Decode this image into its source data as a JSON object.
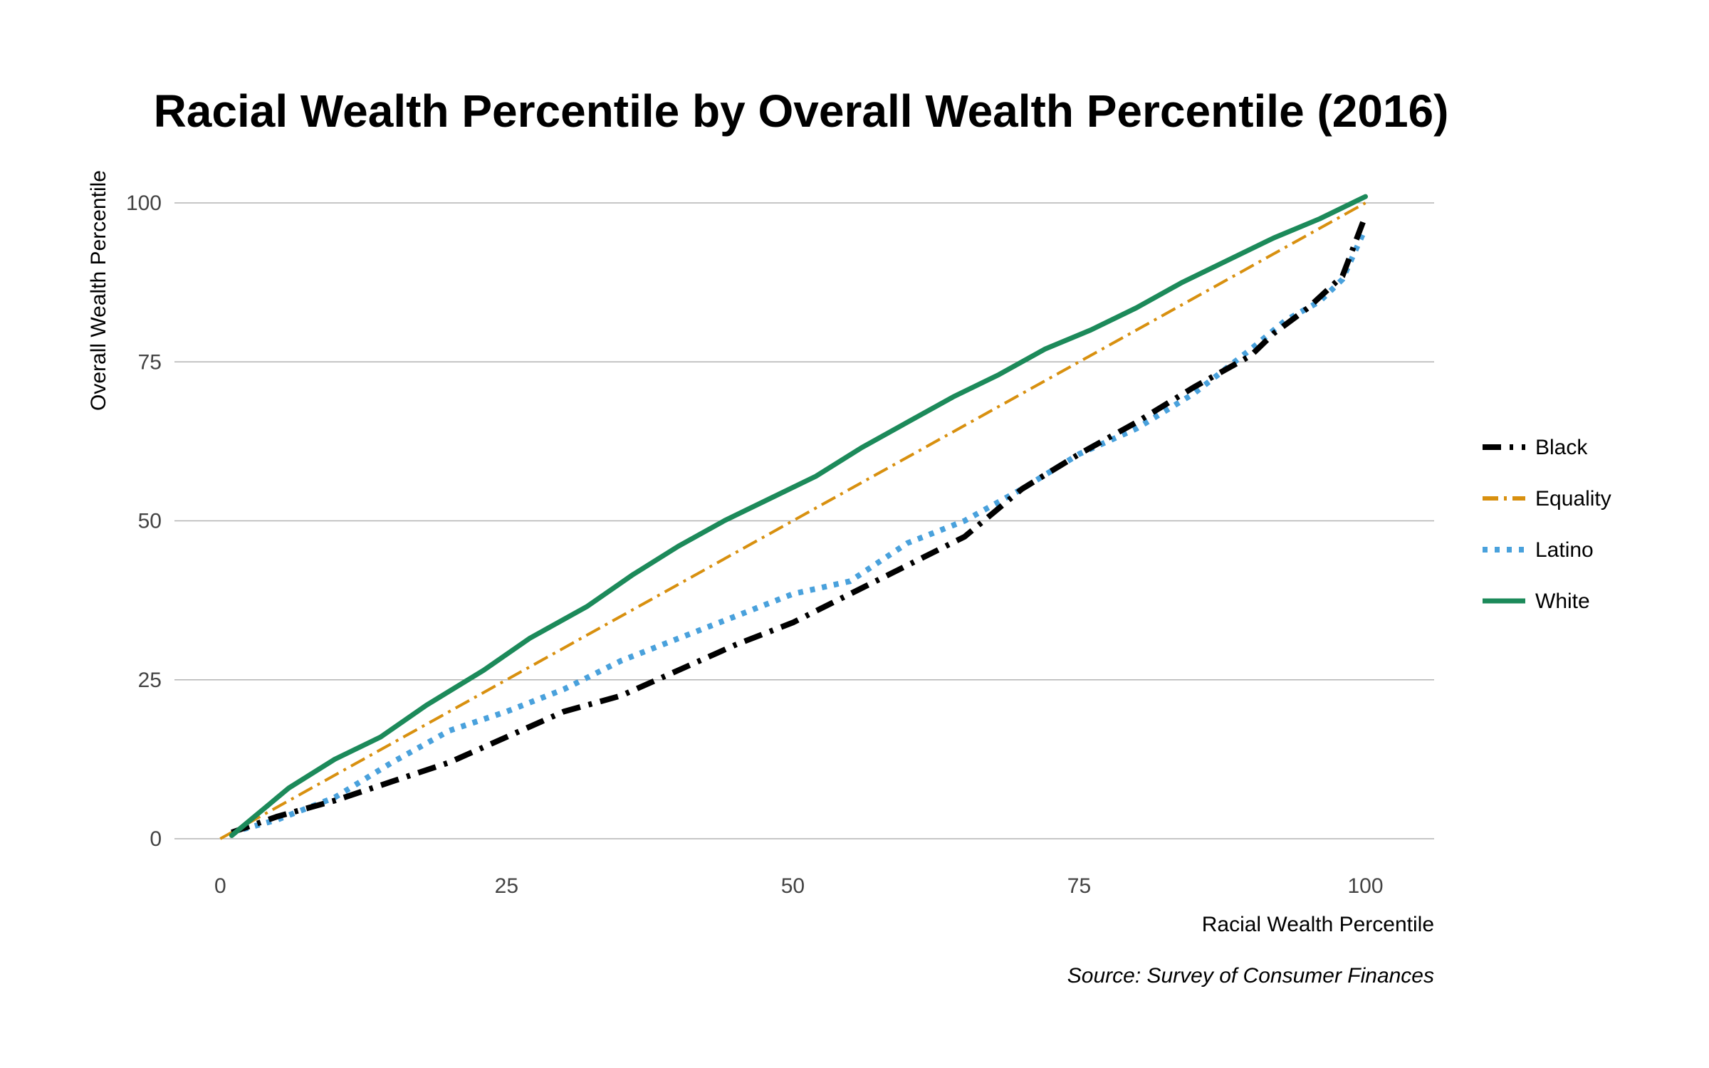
{
  "chart_data": {
    "type": "line",
    "title": "Racial Wealth Percentile by Overall Wealth Percentile (2016)",
    "xlabel": "Racial Wealth Percentile",
    "ylabel": "Overall Wealth Percentile",
    "source": "Source: Survey of Consumer Finances",
    "xlim": [
      -4,
      106
    ],
    "ylim": [
      0,
      100
    ],
    "xticks": [
      0,
      25,
      50,
      75,
      100
    ],
    "yticks": [
      0,
      25,
      50,
      75,
      100
    ],
    "grid": "horizontal",
    "legend_position": "right",
    "series": [
      {
        "name": "Black",
        "color": "#000000",
        "style": "dashdot",
        "x": [
          1,
          5,
          10,
          15,
          20,
          25,
          30,
          35,
          40,
          45,
          50,
          55,
          60,
          65,
          70,
          75,
          80,
          85,
          90,
          92,
          95,
          98,
          100
        ],
        "y": [
          1,
          3.5,
          6,
          9,
          12,
          16,
          20,
          22.5,
          26.5,
          30.5,
          34,
          38.5,
          43,
          47.5,
          55,
          60.5,
          65.5,
          71,
          76,
          79.5,
          83.5,
          88.5,
          98
        ]
      },
      {
        "name": "Equality",
        "color": "#D8900F",
        "style": "dashdot-thin",
        "x": [
          0,
          100
        ],
        "y": [
          0,
          100
        ]
      },
      {
        "name": "Latino",
        "color": "#49A1DC",
        "style": "dotted",
        "x": [
          2,
          5,
          10,
          15,
          20,
          25,
          30,
          35,
          40,
          45,
          50,
          55,
          60,
          65,
          70,
          75,
          80,
          85,
          90,
          93,
          96,
          98,
          100
        ],
        "y": [
          1.5,
          3,
          6.5,
          12,
          17,
          20,
          23.5,
          28,
          31.5,
          35,
          38.5,
          40.5,
          46.5,
          50,
          55,
          60.5,
          64.5,
          70,
          77,
          81.5,
          84.5,
          88,
          96
        ]
      },
      {
        "name": "White",
        "color": "#1C8A5A",
        "style": "solid",
        "x": [
          1,
          3,
          6,
          10,
          14,
          18,
          23,
          27,
          32,
          36,
          40,
          44,
          48,
          52,
          56,
          60,
          64,
          68,
          72,
          76,
          80,
          84,
          88,
          92,
          96,
          100
        ],
        "y": [
          0.5,
          3.5,
          8,
          12.5,
          16,
          21,
          26.5,
          31.5,
          36.5,
          41.5,
          46,
          50,
          53.5,
          57,
          61.5,
          65.5,
          69.5,
          73,
          77,
          80,
          83.5,
          87.5,
          91,
          94.5,
          97.5,
          101
        ]
      }
    ]
  }
}
